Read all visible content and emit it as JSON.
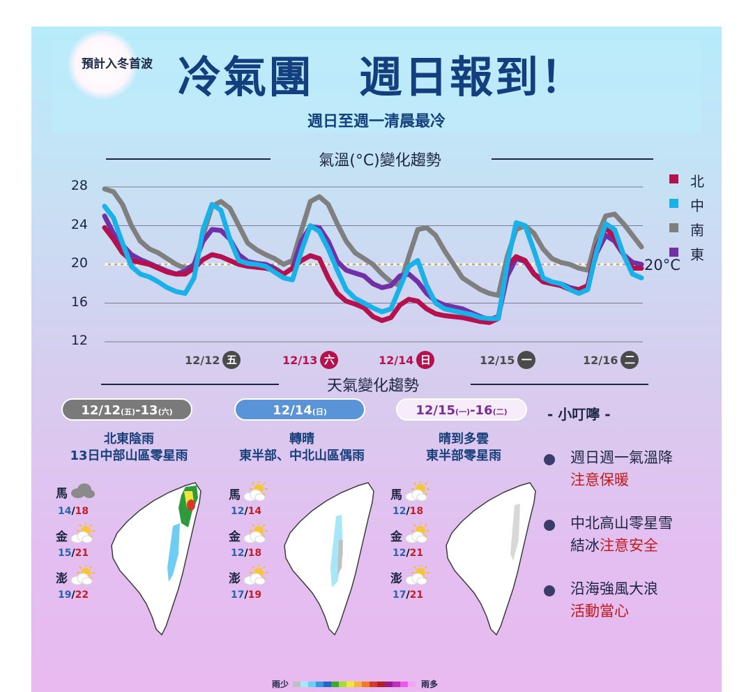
{
  "header": {
    "pre_title": "預計入冬首波",
    "title": "冷氣團　週日報到！",
    "subtitle": "週日至週一清晨最冷"
  },
  "temp_section_title": "氣溫(°C)變化趨勢",
  "weather_section_title": "天氣變化趨勢",
  "chart_data": {
    "type": "line",
    "ylim": [
      12,
      29
    ],
    "yticks": [
      "28",
      "24",
      "20",
      "16",
      "12"
    ],
    "reference_line": {
      "value": 20,
      "label": "20°C"
    },
    "date_labels": [
      {
        "date": "12/12",
        "weekday": "五",
        "text_color": "#4a4a4a",
        "circle_color": "#4a4a4a"
      },
      {
        "date": "12/13",
        "weekday": "六",
        "text_color": "#b3124f",
        "circle_color": "#b3124f"
      },
      {
        "date": "12/14",
        "weekday": "日",
        "text_color": "#b3124f",
        "circle_color": "#b3124f"
      },
      {
        "date": "12/15",
        "weekday": "一",
        "text_color": "#4a4a4a",
        "circle_color": "#4a4a4a"
      },
      {
        "date": "12/16",
        "weekday": "二",
        "text_color": "#4a4a4a",
        "circle_color": "#4a4a4a"
      }
    ],
    "x": [
      0,
      1,
      2,
      3,
      4,
      5,
      6,
      7,
      8,
      9,
      10,
      11,
      12,
      13,
      14,
      15,
      16,
      17,
      18,
      19,
      20,
      21,
      22,
      23,
      24,
      25,
      26,
      27,
      28,
      29,
      30,
      31,
      32,
      33,
      34,
      35,
      36,
      37,
      38,
      39,
      40,
      41,
      42,
      43,
      44,
      45,
      46,
      47,
      48,
      49,
      50,
      51,
      52,
      53,
      54,
      55,
      56,
      57,
      58,
      59,
      60
    ],
    "series": [
      {
        "name": "南",
        "color": "#7f7f7f",
        "values": [
          27.8,
          27.5,
          26.2,
          24.0,
          22.4,
          21.6,
          21.2,
          20.6,
          20.0,
          19.6,
          19.8,
          23.0,
          26.0,
          26.5,
          25.8,
          24.0,
          22.2,
          21.5,
          21.0,
          20.6,
          20.0,
          20.4,
          23.5,
          26.5,
          27.0,
          26.2,
          24.2,
          22.4,
          21.2,
          20.6,
          20.0,
          19.0,
          18.2,
          17.8,
          20.8,
          23.6,
          23.8,
          23.0,
          21.4,
          20.0,
          18.6,
          18.0,
          17.4,
          17.0,
          16.8,
          20.8,
          23.6,
          24.0,
          23.2,
          21.6,
          20.6,
          20.2,
          20.0,
          19.6,
          19.4,
          22.8,
          25.0,
          25.2,
          24.2,
          23.0,
          21.8
        ]
      },
      {
        "name": "東",
        "color": "#7130a6",
        "values": [
          25.0,
          23.2,
          22.0,
          21.0,
          20.5,
          20.1,
          19.7,
          19.3,
          19.0,
          19.3,
          20.0,
          22.4,
          23.6,
          23.5,
          22.6,
          21.0,
          20.3,
          20.1,
          20.0,
          19.6,
          19.0,
          19.6,
          22.4,
          23.9,
          23.8,
          22.4,
          20.3,
          19.4,
          19.1,
          18.8,
          18.0,
          17.6,
          17.8,
          18.8,
          19.0,
          18.2,
          17.0,
          16.2,
          15.8,
          15.6,
          15.4,
          15.0,
          14.6,
          14.3,
          14.6,
          18.8,
          20.6,
          20.3,
          19.0,
          18.4,
          18.1,
          18.0,
          17.6,
          17.4,
          17.8,
          21.2,
          23.0,
          22.4,
          21.0,
          20.2,
          20.0
        ]
      },
      {
        "name": "北",
        "color": "#b3124f",
        "values": [
          23.8,
          22.6,
          21.2,
          20.4,
          20.2,
          20.0,
          19.6,
          19.2,
          19.0,
          19.0,
          19.6,
          20.5,
          21.0,
          20.8,
          20.4,
          20.0,
          19.8,
          19.7,
          19.6,
          19.4,
          19.0,
          19.6,
          20.4,
          20.9,
          20.6,
          18.6,
          17.0,
          16.2,
          15.9,
          15.5,
          14.6,
          14.2,
          14.5,
          15.8,
          16.4,
          16.2,
          15.4,
          14.9,
          14.7,
          14.6,
          14.5,
          14.3,
          14.1,
          14.0,
          14.4,
          19.8,
          20.8,
          20.4,
          19.0,
          18.2,
          18.0,
          17.8,
          17.4,
          17.4,
          17.8,
          21.8,
          23.8,
          22.8,
          21.0,
          19.6,
          19.6
        ]
      },
      {
        "name": "中",
        "color": "#1ab0e8",
        "values": [
          26.0,
          24.8,
          22.2,
          19.8,
          19.0,
          18.7,
          18.2,
          17.6,
          17.2,
          17.0,
          18.6,
          23.6,
          26.2,
          25.6,
          22.6,
          20.4,
          20.1,
          20.0,
          19.8,
          19.2,
          18.6,
          18.4,
          21.4,
          24.0,
          23.4,
          21.6,
          19.4,
          17.4,
          16.5,
          16.0,
          15.5,
          15.1,
          15.4,
          17.6,
          19.8,
          20.4,
          17.8,
          16.0,
          15.4,
          15.2,
          15.0,
          14.8,
          14.5,
          14.4,
          14.4,
          20.0,
          24.3,
          24.0,
          21.4,
          18.6,
          18.2,
          18.0,
          17.4,
          17.0,
          17.4,
          21.4,
          24.2,
          23.6,
          21.0,
          19.0,
          18.6
        ]
      }
    ]
  },
  "legend": [
    {
      "label": "北",
      "color": "#b3124f"
    },
    {
      "label": "中",
      "color": "#1ab0e8"
    },
    {
      "label": "南",
      "color": "#7f7f7f"
    },
    {
      "label": "東",
      "color": "#7130a6"
    }
  ],
  "periods": [
    {
      "date_main": "12/12",
      "date_paren1": "(五)",
      "date_mid": "-13",
      "date_paren2": "(六)",
      "pill_bg": "#7a7a7a",
      "pill_fg": "#ffffff",
      "pill_border": "#ffffff",
      "desc1": "北東陰雨",
      "desc2": "13日中部山區零星雨",
      "cities": [
        {
          "name": "馬",
          "icon": "cloud-icon",
          "lo": "14",
          "hi": "18"
        },
        {
          "name": "金",
          "icon": "partly-sunny-icon",
          "lo": "15",
          "hi": "21"
        },
        {
          "name": "澎",
          "icon": "partly-sunny-icon",
          "lo": "19",
          "hi": "22"
        }
      ]
    },
    {
      "date_main": "12/14",
      "date_paren1": "(日)",
      "date_mid": "",
      "date_paren2": "",
      "pill_bg": "#5a94d8",
      "pill_fg": "#ffffff",
      "pill_border": "#ffffff",
      "desc1": "轉晴",
      "desc2": "東半部、中北山區偶雨",
      "cities": [
        {
          "name": "馬",
          "icon": "partly-sunny-icon",
          "lo": "12",
          "hi": "14"
        },
        {
          "name": "金",
          "icon": "partly-sunny-icon",
          "lo": "12",
          "hi": "18"
        },
        {
          "name": "澎",
          "icon": "partly-sunny-icon",
          "lo": "17",
          "hi": "19"
        }
      ]
    },
    {
      "date_main": "12/15",
      "date_paren1": "(一)",
      "date_mid": "-16",
      "date_paren2": "(二)",
      "pill_bg": "#f6ecfa",
      "pill_fg": "#7a2f96",
      "pill_border": "#ffffff",
      "desc1": "晴到多雲",
      "desc2": "東半部零星雨",
      "cities": [
        {
          "name": "馬",
          "icon": "partly-sunny-icon",
          "lo": "12",
          "hi": "18"
        },
        {
          "name": "金",
          "icon": "partly-sunny-icon",
          "lo": "12",
          "hi": "21"
        },
        {
          "name": "澎",
          "icon": "partly-sunny-icon",
          "lo": "17",
          "hi": "21"
        }
      ]
    }
  ],
  "tips": {
    "title": "- 小叮嚀 -",
    "items": [
      {
        "line1_a": "週日週一氣溫降",
        "line1_b": "",
        "line2_a": "",
        "line2_b": "注意保暖"
      },
      {
        "line1_a": "中北高山零星雪",
        "line1_b": "",
        "line2_a": "結冰",
        "line2_b": "注意安全"
      },
      {
        "line1_a": "沿海強風大浪",
        "line1_b": "",
        "line2_a": "",
        "line2_b": "活動當心"
      }
    ]
  },
  "rain_scale": {
    "low_label": "雨少",
    "high_label": "雨多",
    "colors": [
      "#c0c0c0",
      "#a6e6f8",
      "#6ecdf2",
      "#3399e6",
      "#2266cc",
      "#38a838",
      "#a6dc36",
      "#f0e63a",
      "#f4b33a",
      "#ee7a2e",
      "#d23a2a",
      "#b0202a",
      "#9a1a8a",
      "#c030c0",
      "#ea5aea",
      "#f0a6f0"
    ]
  }
}
